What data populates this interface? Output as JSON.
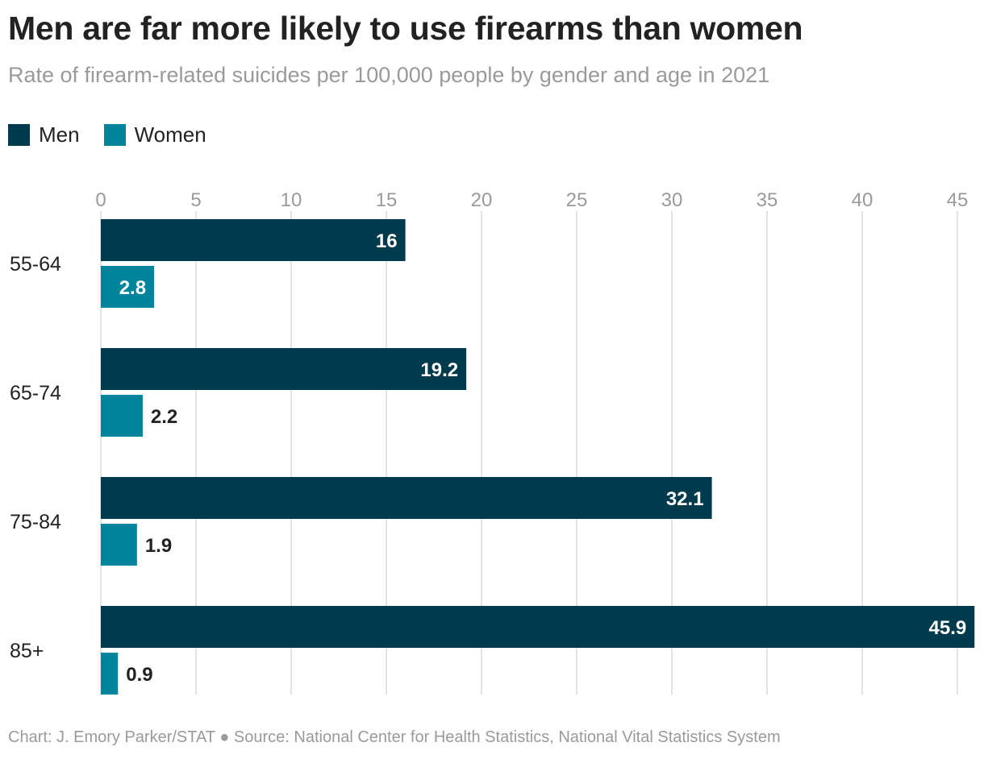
{
  "title": "Men are far more likely to use firearms than women",
  "subtitle": "Rate of firearm-related suicides per 100,000 people by gender and age in 2021",
  "footer": "Chart: J. Emory Parker/STAT ● Source: National Center for Health Statistics, National Vital Statistics System",
  "legend": [
    {
      "label": "Men",
      "color": "#003a4d"
    },
    {
      "label": "Women",
      "color": "#00849b"
    }
  ],
  "chart_data": {
    "type": "bar",
    "orientation": "horizontal",
    "categories": [
      "55-64",
      "65-74",
      "75-84",
      "85+"
    ],
    "series": [
      {
        "name": "Men",
        "color": "#003a4d",
        "values": [
          16,
          19.2,
          32.1,
          45.9
        ],
        "labels": [
          "16",
          "19.2",
          "32.1",
          "45.9"
        ]
      },
      {
        "name": "Women",
        "color": "#00849b",
        "values": [
          2.8,
          2.2,
          1.9,
          0.9
        ],
        "labels": [
          "2.8",
          "2.2",
          "1.9",
          "0.9"
        ]
      }
    ],
    "xticks": [
      0,
      5,
      10,
      15,
      20,
      25,
      30,
      35,
      40,
      45
    ],
    "xlim": [
      0,
      45
    ],
    "grid": true,
    "legend_position": "top-left"
  }
}
